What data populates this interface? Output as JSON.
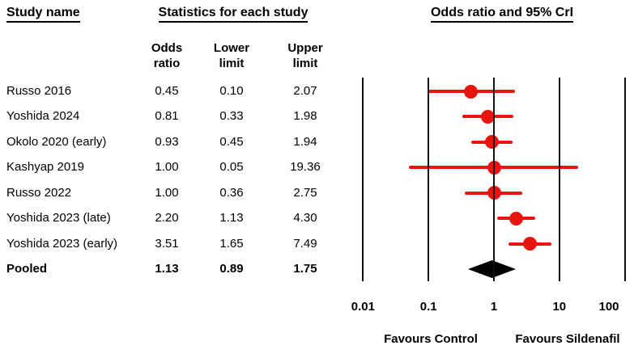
{
  "headers": {
    "study_name": "Study name",
    "statistics": "Statistics for each study",
    "plot": "Odds ratio and 95% CrI"
  },
  "columns": [
    {
      "l1": "Odds",
      "l2": "ratio"
    },
    {
      "l1": "Lower",
      "l2": "limit"
    },
    {
      "l1": "Upper",
      "l2": "limit"
    }
  ],
  "chart_data": {
    "type": "forest",
    "x_scale": "log",
    "xlim": [
      0.01,
      100
    ],
    "x_ticks": [
      "0.01",
      "0.1",
      "1",
      "10",
      "100"
    ],
    "x_tick_values": [
      0.01,
      0.1,
      1,
      10,
      100
    ],
    "footer_left": "Favours Control",
    "footer_right": "Favours Sildenafil",
    "marker_color": "#e8150e",
    "pooled_color": "#000000",
    "grid_color": "#111111",
    "studies": [
      {
        "name": "Russo 2016",
        "or": "0.45",
        "lower": "0.10",
        "upper": "2.07",
        "pooled": false
      },
      {
        "name": "Yoshida 2024",
        "or": "0.81",
        "lower": "0.33",
        "upper": "1.98",
        "pooled": false
      },
      {
        "name": "Okolo 2020 (early)",
        "or": "0.93",
        "lower": "0.45",
        "upper": "1.94",
        "pooled": false
      },
      {
        "name": "Kashyap 2019",
        "or": "1.00",
        "lower": "0.05",
        "upper": "19.36",
        "pooled": false
      },
      {
        "name": "Russo 2022",
        "or": "1.00",
        "lower": "0.36",
        "upper": "2.75",
        "pooled": false
      },
      {
        "name": "Yoshida 2023 (late)",
        "or": "2.20",
        "lower": "1.13",
        "upper": "4.30",
        "pooled": false
      },
      {
        "name": "Yoshida 2023 (early)",
        "or": "3.51",
        "lower": "1.65",
        "upper": "7.49",
        "pooled": false
      },
      {
        "name": "Pooled",
        "or": "1.13",
        "lower": "0.89",
        "upper": "1.75",
        "pooled": true
      }
    ]
  }
}
